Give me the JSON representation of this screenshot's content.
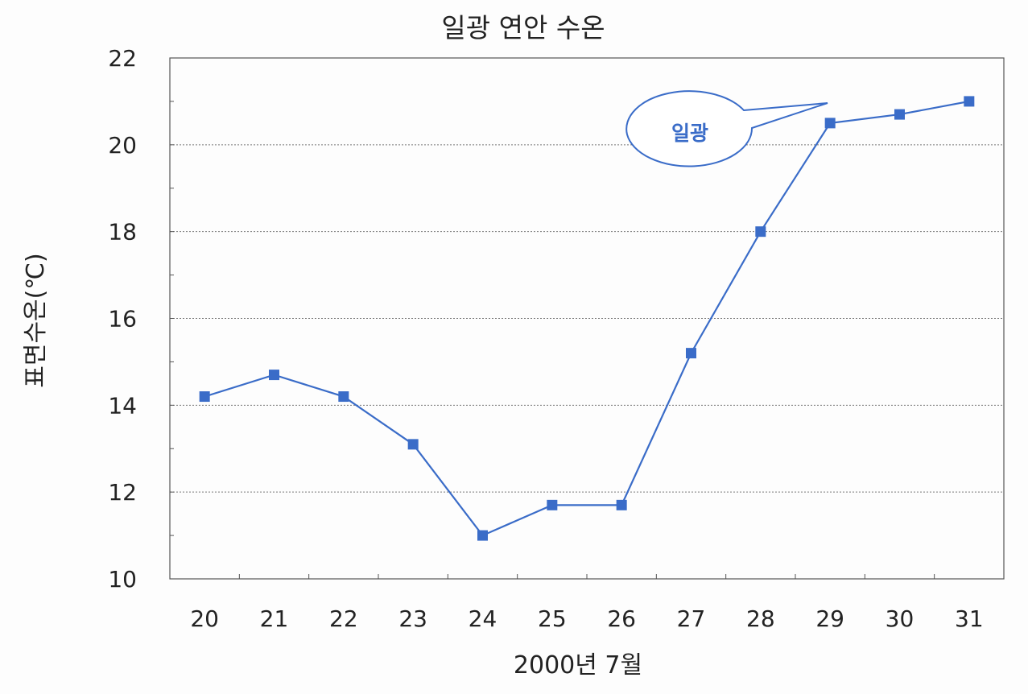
{
  "chart_data": {
    "type": "line",
    "title": "일광 연안 수온",
    "xlabel": "2000년 7월",
    "ylabel": "표면수온(℃)",
    "categories": [
      "20",
      "21",
      "22",
      "23",
      "24",
      "25",
      "26",
      "27",
      "28",
      "29",
      "30",
      "31"
    ],
    "series": [
      {
        "name": "일광",
        "values": [
          14.2,
          14.7,
          14.2,
          13.1,
          11.0,
          11.7,
          11.7,
          15.2,
          18.0,
          20.5,
          20.7,
          21.0
        ],
        "color": "#3a6cc8",
        "marker": "square"
      }
    ],
    "ylim": [
      10,
      22
    ],
    "yticks": [
      "10",
      "12",
      "14",
      "16",
      "18",
      "20",
      "22"
    ],
    "grid": true,
    "legend": "callout-top-right"
  }
}
